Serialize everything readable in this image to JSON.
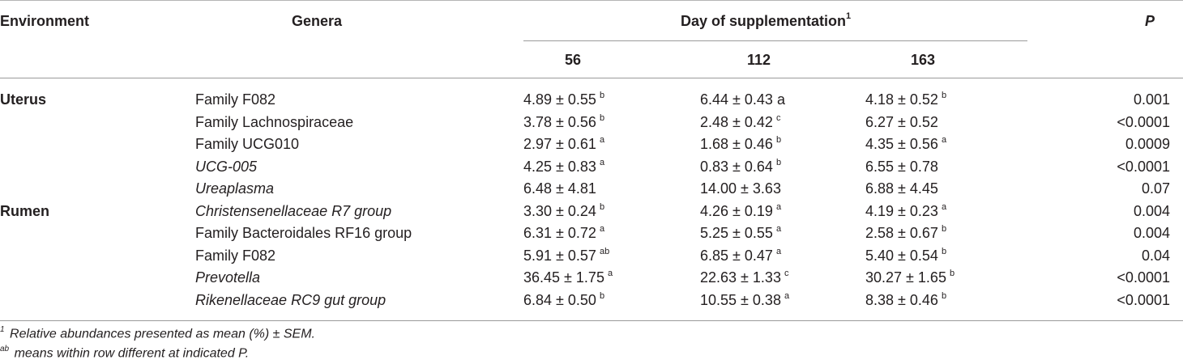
{
  "header": {
    "environment": "Environment",
    "genera": "Genera",
    "day_group": "Day of supplementation",
    "day_group_sup": "1",
    "p": "P",
    "days": [
      "56",
      "112",
      "163"
    ]
  },
  "rows": [
    {
      "env": "Uterus",
      "genus": "Family F082",
      "italic": false,
      "d56": "4.89 ± 0.55",
      "d56s": "b",
      "d112": "6.44 ± 0.43 a",
      "d112s": "",
      "d163": "4.18 ± 0.52",
      "d163s": "b",
      "p": "0.001"
    },
    {
      "env": "",
      "genus": "Family Lachnospiraceae",
      "italic": false,
      "d56": "3.78 ± 0.56",
      "d56s": "b",
      "d112": "2.48 ± 0.42",
      "d112s": "c",
      "d163": "6.27 ± 0.52",
      "d163s": "",
      "p": "<0.0001"
    },
    {
      "env": "",
      "genus": "Family UCG010",
      "italic": false,
      "d56": "2.97 ± 0.61",
      "d56s": "a",
      "d112": "1.68 ± 0.46",
      "d112s": "b",
      "d163": "4.35 ± 0.56",
      "d163s": "a",
      "p": "0.0009"
    },
    {
      "env": "",
      "genus": "UCG-005",
      "italic": true,
      "d56": "4.25 ± 0.83",
      "d56s": "a",
      "d112": "0.83 ± 0.64",
      "d112s": "b",
      "d163": "6.55 ± 0.78",
      "d163s": "",
      "p": "<0.0001"
    },
    {
      "env": "",
      "genus": "Ureaplasma",
      "italic": true,
      "d56": "6.48 ± 4.81",
      "d56s": "",
      "d112": "14.00 ± 3.63",
      "d112s": "",
      "d163": "6.88 ± 4.45",
      "d163s": "",
      "p": "0.07"
    },
    {
      "env": "Rumen",
      "genus": "Christensenellaceae R7 group",
      "italic": true,
      "d56": "3.30 ± 0.24",
      "d56s": "b",
      "d112": "4.26 ± 0.19",
      "d112s": "a",
      "d163": "4.19 ± 0.23",
      "d163s": "a",
      "p": "0.004"
    },
    {
      "env": "",
      "genus": "Family Bacteroidales RF16 group",
      "italic": false,
      "d56": "6.31 ± 0.72",
      "d56s": "a",
      "d112": "5.25 ± 0.55",
      "d112s": "a",
      "d163": "2.58 ± 0.67",
      "d163s": "b",
      "p": "0.004"
    },
    {
      "env": "",
      "genus": "Family F082",
      "italic": false,
      "d56": "5.91 ± 0.57",
      "d56s": "ab",
      "d112": "6.85 ± 0.47",
      "d112s": "a",
      "d163": "5.40 ± 0.54",
      "d163s": "b",
      "p": "0.04"
    },
    {
      "env": "",
      "genus": "Prevotella",
      "italic": true,
      "d56": "36.45 ± 1.75",
      "d56s": "a",
      "d112": "22.63 ± 1.33",
      "d112s": "c",
      "d163": "30.27 ± 1.65",
      "d163s": "b",
      "p": "<0.0001"
    },
    {
      "env": "",
      "genus": "Rikenellaceae RC9 gut group",
      "italic": true,
      "d56": "6.84 ± 0.50",
      "d56s": "b",
      "d112": "10.55 ± 0.38",
      "d112s": "a",
      "d163": "8.38 ± 0.46",
      "d163s": "b",
      "p": "<0.0001"
    }
  ],
  "footnotes": [
    {
      "sup": "1",
      "text": "Relative abundances presented as mean (%) ± SEM."
    },
    {
      "sup": "ab",
      "text": "means within row different at indicated P."
    }
  ]
}
